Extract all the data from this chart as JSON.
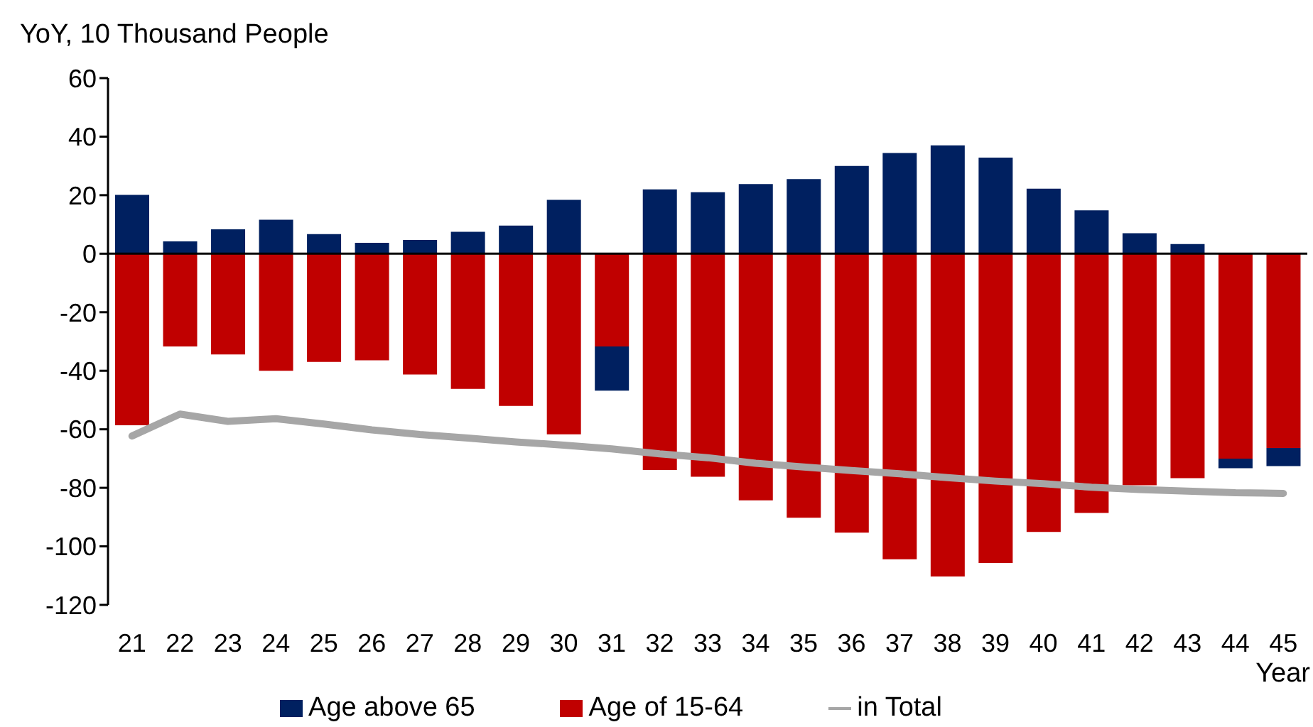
{
  "chart_data": {
    "type": "bar",
    "stacked": true,
    "ylabel": "YoY, 10 Thousand People",
    "xlabel": "Year",
    "categories": [
      "21",
      "22",
      "23",
      "24",
      "25",
      "26",
      "27",
      "28",
      "29",
      "30",
      "31",
      "32",
      "33",
      "34",
      "35",
      "36",
      "37",
      "38",
      "39",
      "40",
      "41",
      "42",
      "43",
      "44",
      "45"
    ],
    "series": [
      {
        "name": "Age of 15-64",
        "color": "#c00000",
        "values": [
          -58.6,
          -31.7,
          -34.4,
          -40.0,
          -37.0,
          -36.4,
          -41.3,
          -46.2,
          -52.0,
          -61.7,
          -31.7,
          -73.9,
          -76.2,
          -84.3,
          -90.2,
          -95.3,
          -104.4,
          -110.3,
          -105.7,
          -95.1,
          -88.6,
          -79.1,
          -76.7,
          -70.0,
          -66.4
        ]
      },
      {
        "name": "Age above 65",
        "color": "#002060",
        "values": [
          20.1,
          4.2,
          8.3,
          11.6,
          6.7,
          3.7,
          4.7,
          7.5,
          9.6,
          18.4,
          -15.1,
          22.0,
          21.0,
          23.8,
          25.5,
          30.0,
          34.4,
          37.0,
          32.8,
          22.2,
          14.8,
          7.0,
          3.3,
          -3.3,
          -6.2
        ]
      },
      {
        "name": "in Total",
        "type": "line",
        "color": "#a6a6a6",
        "values": [
          -62.3,
          -54.8,
          -57.3,
          -56.4,
          -58.2,
          -60.2,
          -61.8,
          -63.0,
          -64.3,
          -65.4,
          -66.7,
          -68.4,
          -69.7,
          -71.6,
          -72.9,
          -74.1,
          -75.2,
          -76.5,
          -77.7,
          -78.6,
          -79.8,
          -80.6,
          -81.1,
          -81.7,
          -81.9
        ]
      }
    ],
    "ylim": [
      -120,
      60
    ],
    "yticks": [
      60,
      40,
      20,
      0,
      -20,
      -40,
      -60,
      -80,
      -100,
      -120
    ],
    "ref_lines": [
      {
        "axis": "y",
        "value": 0,
        "color": "#000000"
      }
    ],
    "legend": "bottom",
    "marker": "none"
  }
}
